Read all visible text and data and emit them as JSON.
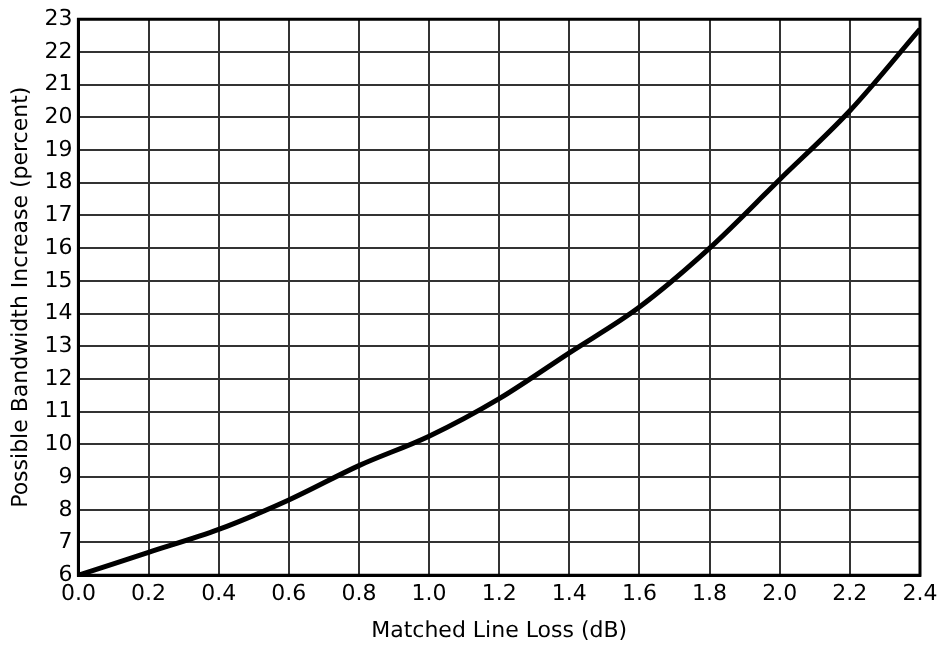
{
  "chart_data": {
    "type": "line",
    "xlabel": "Matched Line Loss (dB)",
    "ylabel": "Possible Bandwidth Increase (percent)",
    "x": [
      0,
      0.2,
      0.4,
      0.6,
      0.8,
      1.0,
      1.2,
      1.4,
      1.6,
      1.8,
      2.0,
      2.2,
      2.4
    ],
    "series": [
      {
        "color": "#000000",
        "values": [
          6.0,
          6.7,
          7.4,
          8.3,
          9.35,
          10.25,
          11.4,
          12.8,
          14.2,
          16.0,
          18.1,
          20.2,
          22.7
        ]
      }
    ],
    "xlim": [
      0,
      2.4
    ],
    "xticks": [
      {
        "value": 0,
        "label": "0.0"
      },
      0.2,
      0.4,
      0.6,
      0.8,
      {
        "value": 1,
        "label": "1.0"
      },
      1.2,
      1.4,
      1.6,
      1.8,
      {
        "value": 2,
        "label": "2.0"
      },
      2.2,
      2.4
    ],
    "ylim": [
      6,
      23
    ],
    "yticks": [
      6,
      7,
      8,
      9,
      10,
      11,
      12,
      13,
      14,
      15,
      16,
      17,
      18,
      19,
      20,
      21,
      22,
      23
    ],
    "grid": true,
    "legend": false,
    "marker": "none",
    "line_style": "solid"
  }
}
